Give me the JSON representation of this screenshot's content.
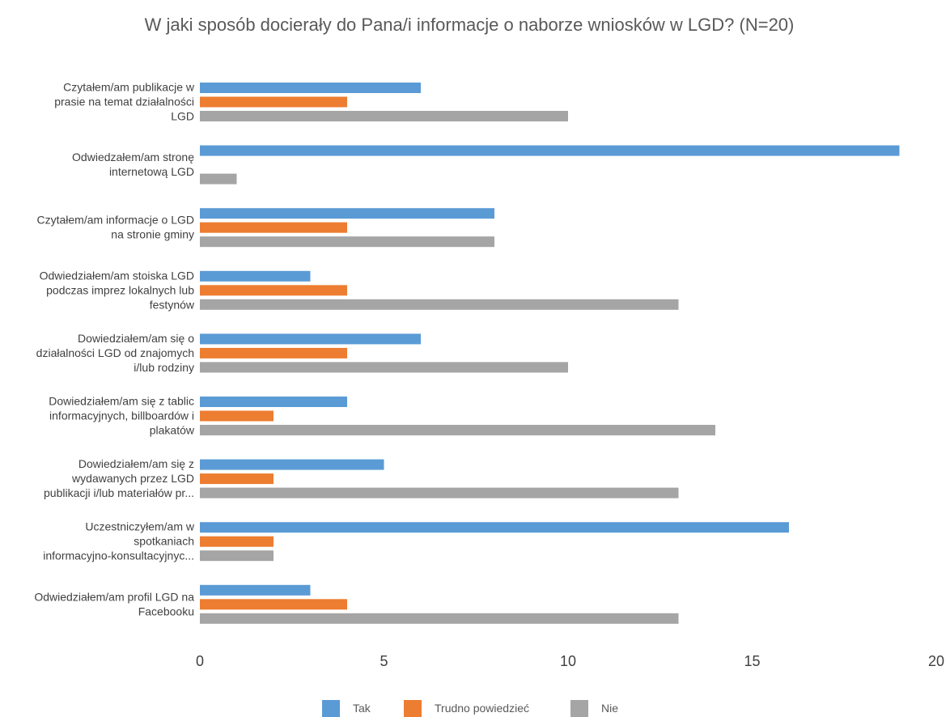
{
  "chart_data": {
    "type": "bar",
    "orientation": "horizontal",
    "title": "W jaki sposób docierały do Pana/i informacje o naborze wniosków w LGD? (N=20)",
    "xlim": [
      0,
      20
    ],
    "xticks": [
      0,
      5,
      10,
      15,
      20
    ],
    "grid": false,
    "legend_position": "bottom",
    "categories": [
      [
        "Czytałem/am publikacje w",
        "prasie na temat działalności",
        "LGD"
      ],
      [
        "Odwiedzałem/am stronę",
        "internetową LGD"
      ],
      [
        "Czytałem/am informacje o LGD",
        "na stronie gminy"
      ],
      [
        "Odwiedziałem/am stoiska LGD",
        "podczas imprez lokalnych lub",
        "festynów"
      ],
      [
        "Dowiedziałem/am się o",
        "działalności LGD od znajomych",
        "i/lub rodziny"
      ],
      [
        "Dowiedziałem/am się z tablic",
        "informacyjnych, billboardów i",
        "plakatów"
      ],
      [
        "Dowiedziałem/am się z",
        "wydawanych przez LGD",
        "publikacji i/lub materiałów pr..."
      ],
      [
        "Uczestniczyłem/am w",
        "spotkaniach",
        "informacyjno-konsultacyjnyc..."
      ],
      [
        "Odwiedziałem/am profil LGD na",
        "Facebooku"
      ]
    ],
    "series": [
      {
        "name": "Tak",
        "color": "#5B9BD5",
        "values": [
          6,
          19,
          8,
          3,
          6,
          4,
          5,
          16,
          3
        ]
      },
      {
        "name": "Trudno powiedzieć",
        "color": "#ED7D31",
        "values": [
          4,
          0,
          4,
          4,
          4,
          2,
          2,
          2,
          4
        ]
      },
      {
        "name": "Nie",
        "color": "#A5A5A5",
        "values": [
          10,
          1,
          8,
          13,
          10,
          14,
          13,
          2,
          13
        ]
      }
    ]
  }
}
